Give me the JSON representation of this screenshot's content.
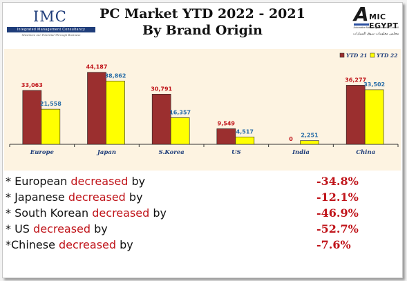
{
  "header": {
    "title_line1": "PC Market YTD 2022 - 2021",
    "title_line2": "By Brand Origin",
    "logo_left": {
      "name": "IMC",
      "bar_text": "Integrated Management Consultancy",
      "tagline": "Maximize our Potential Through Business"
    },
    "logo_right": {
      "mark": "A",
      "name": "MIC EGYPT",
      "small_text": "Automotive Marketing Information Council",
      "arabic_text": "مجلس معلومات سوق السيارات"
    }
  },
  "chart_data": {
    "type": "bar",
    "categories": [
      "Europe",
      "Japan",
      "S.Korea",
      "US",
      "India",
      "China"
    ],
    "series": [
      {
        "name": "YTD 21",
        "color": "#9b2f2f",
        "values": [
          33063,
          44187,
          30791,
          9549,
          0,
          36277
        ],
        "labels": [
          "33,063",
          "44,187",
          "30,791",
          "9,549",
          "0",
          "36,277"
        ]
      },
      {
        "name": "YTD 22",
        "color": "#ffff00",
        "values": [
          21558,
          38862,
          16357,
          4517,
          2251,
          33502
        ],
        "labels": [
          "21,558",
          "38,862",
          "16,357",
          "4,517",
          "2,251",
          "33,502"
        ]
      }
    ],
    "ylim": [
      0,
      50000
    ],
    "legend_position": "top-right",
    "background": "#fdf3e1",
    "label_colors": {
      "ytd21": "#c0141a",
      "ytd22": "#2a6ea8"
    }
  },
  "summary": [
    {
      "prefix": "* European ",
      "highlight": "decreased",
      "suffix": " by",
      "value": "-34.8%"
    },
    {
      "prefix": "* Japanese ",
      "highlight": "decreased",
      "suffix": " by",
      "value": "-12.1%"
    },
    {
      "prefix": "* South Korean ",
      "highlight": "decreased",
      "suffix": " by",
      "value": "-46.9%"
    },
    {
      "prefix": "* US ",
      "highlight": "decreased",
      "suffix": " by",
      "value": "-52.7%"
    },
    {
      "prefix": "*Chinese ",
      "highlight": "decreased",
      "suffix": " by",
      "value": "-7.6%"
    }
  ]
}
